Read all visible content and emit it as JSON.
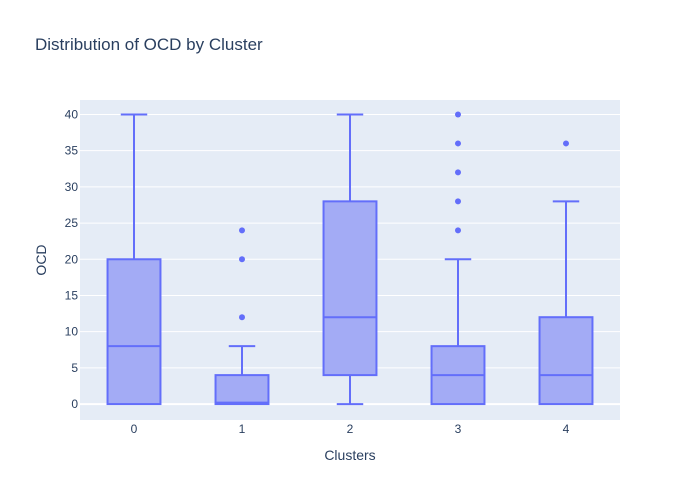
{
  "chart_data": {
    "type": "box",
    "title": "Distribution of OCD by Cluster",
    "xlabel": "Clusters",
    "ylabel": "OCD",
    "categories": [
      "0",
      "1",
      "2",
      "3",
      "4"
    ],
    "ylim": [
      -2.2,
      42
    ],
    "yticks": [
      0,
      5,
      10,
      15,
      20,
      25,
      30,
      35,
      40
    ],
    "grid": true,
    "colors": {
      "fill": "#a3abf5",
      "line": "#636efa",
      "plot_bg": "#e5ecf6",
      "grid": "#ffffff",
      "text": "#2a3f5f"
    },
    "boxes": [
      {
        "category": "0",
        "lower_fence": 0,
        "q1": 0,
        "median": 8,
        "q3": 20,
        "upper_fence": 40,
        "outliers": []
      },
      {
        "category": "1",
        "lower_fence": 0,
        "q1": 0,
        "median": 0.2,
        "q3": 4,
        "upper_fence": 8,
        "outliers": [
          12,
          20,
          24
        ]
      },
      {
        "category": "2",
        "lower_fence": 0,
        "q1": 4,
        "median": 12,
        "q3": 28,
        "upper_fence": 40,
        "outliers": []
      },
      {
        "category": "3",
        "lower_fence": 0,
        "q1": 0,
        "median": 4,
        "q3": 8,
        "upper_fence": 20,
        "outliers": [
          24,
          28,
          32,
          36,
          40
        ]
      },
      {
        "category": "4",
        "lower_fence": 0,
        "q1": 0,
        "median": 4,
        "q3": 12,
        "upper_fence": 28,
        "outliers": [
          36
        ]
      }
    ]
  }
}
